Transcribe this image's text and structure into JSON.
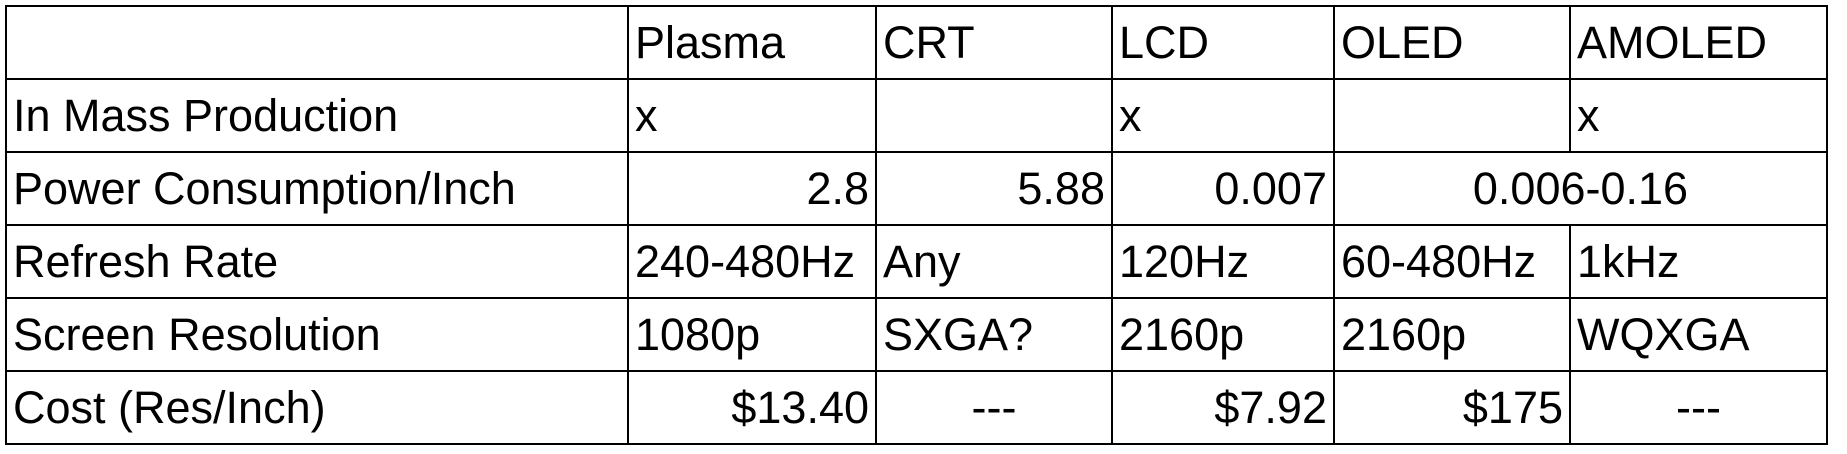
{
  "table": {
    "headers": [
      "",
      "Plasma",
      "CRT",
      "LCD",
      "OLED",
      "AMOLED"
    ],
    "rows": {
      "mass_production": {
        "label": "In Mass Production",
        "plasma": "x",
        "crt": "",
        "lcd": "x",
        "oled": "",
        "amoled": "x"
      },
      "power": {
        "label": "Power Consumption/Inch",
        "plasma": "2.8",
        "crt": "5.88",
        "lcd": "0.007",
        "oled_amoled": "0.006-0.16"
      },
      "refresh": {
        "label": "Refresh Rate",
        "plasma": "240-480Hz",
        "crt": "Any",
        "lcd": "120Hz",
        "oled": "60-480Hz",
        "amoled": "1kHz"
      },
      "resolution": {
        "label": "Screen Resolution",
        "plasma": "1080p",
        "crt": "SXGA?",
        "lcd": "2160p",
        "oled": "2160p",
        "amoled": "WQXGA"
      },
      "cost": {
        "label": "Cost (Res/Inch)",
        "plasma": "$13.40",
        "crt": "---",
        "lcd": "$7.92",
        "oled": "$175",
        "amoled": "---"
      }
    }
  }
}
